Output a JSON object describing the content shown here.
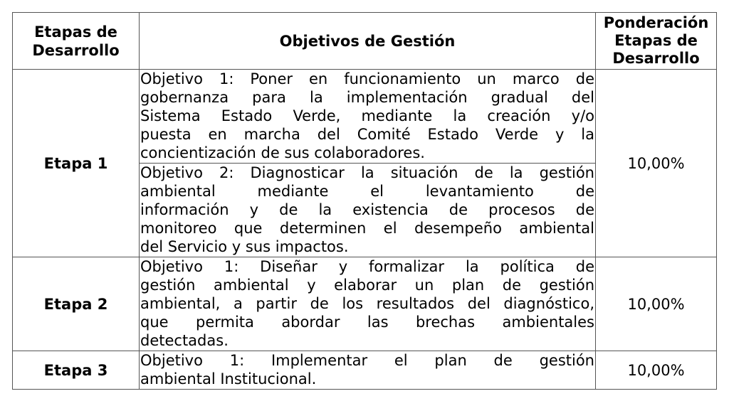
{
  "headers": {
    "stage": [
      "Etapas de",
      "Desarrollo"
    ],
    "objectives": "Objetivos de Gestión",
    "weight": [
      "Ponderación",
      "Etapas de",
      "Desarrollo"
    ]
  },
  "rows": [
    {
      "stage": "Etapa 1",
      "weight": "10,00%",
      "objectives": [
        {
          "lines": [
            "Objetivo 1: Poner en funcionamiento un marco de",
            "gobernanza para la implementación gradual del",
            "Sistema Estado Verde, mediante la creación y/o",
            "puesta en marcha del Comité Estado Verde y la",
            "concientización de sus colaboradores."
          ]
        },
        {
          "lines": [
            "Objetivo 2: Diagnosticar la situación de la gestión",
            "ambiental mediante el levantamiento de",
            "información y de la existencia de procesos de",
            "monitoreo que determinen el desempeño ambiental",
            "del Servicio y sus impactos."
          ]
        }
      ]
    },
    {
      "stage": "Etapa 2",
      "weight": "10,00%",
      "objectives": [
        {
          "lines": [
            "Objetivo 1: Diseñar y formalizar la política de",
            "gestión ambiental y elaborar un plan de gestión",
            "ambiental, a partir de los resultados del diagnóstico,",
            "que permita abordar las brechas ambientales",
            "detectadas."
          ]
        }
      ]
    },
    {
      "stage": "Etapa 3",
      "weight": "10,00%",
      "objectives": [
        {
          "lines": [
            "Objetivo 1: Implementar el plan de gestión",
            "ambiental Institucional."
          ]
        }
      ]
    }
  ]
}
